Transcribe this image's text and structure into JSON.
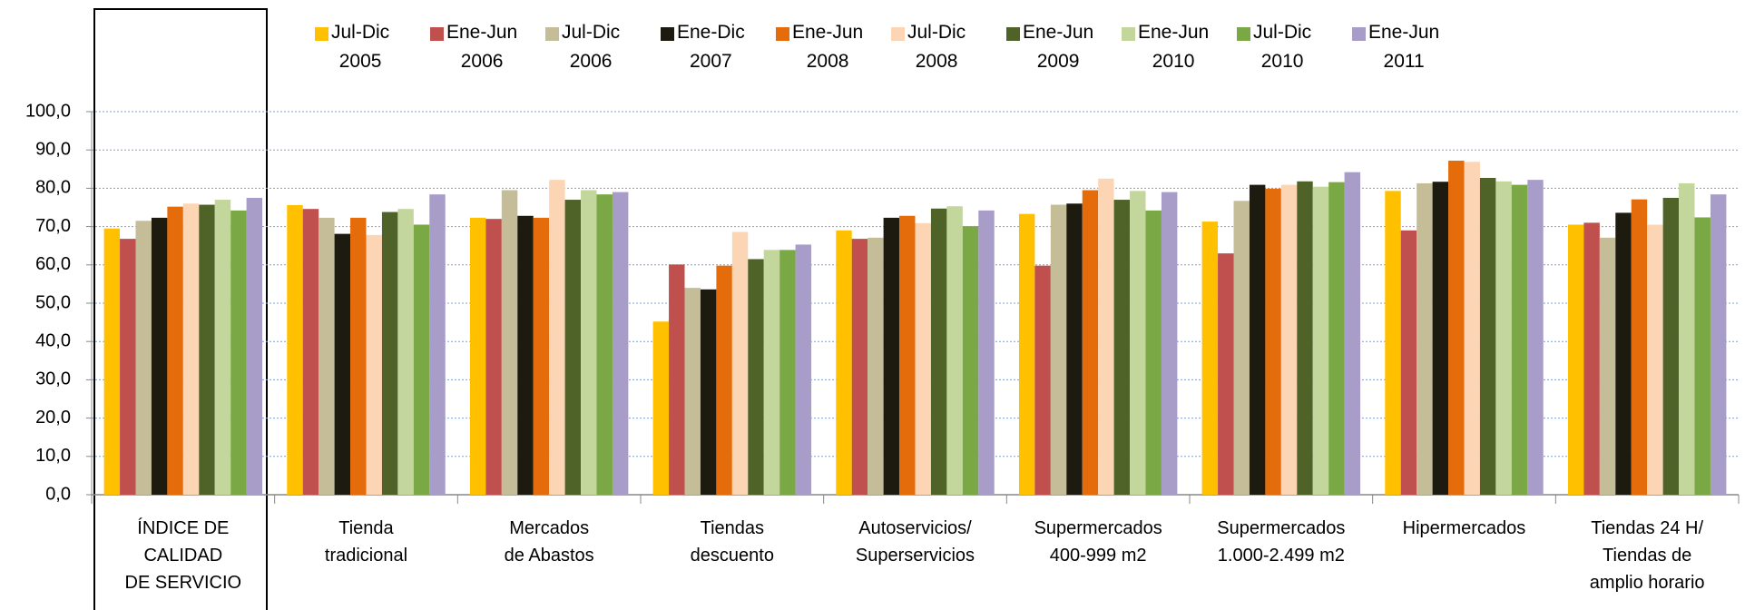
{
  "chart_data": {
    "type": "bar",
    "categories": [
      "ÍNDICE DE\nCALIDAD\nDE SERVICIO",
      "Tienda\ntradicional",
      "Mercados\nde Abastos",
      "Tiendas\ndescuento",
      "Autoservicios/\nSuperservicios",
      "Supermercados\n400-999 m2",
      "Supermercados\n1.000-2.499 m2",
      "Hipermercados",
      "Tiendas 24 H/\nTiendas de\namplio horario"
    ],
    "series": [
      {
        "name": "Jul-Dic\n2005",
        "color": "#ffc000",
        "values": [
          69.5,
          75.6,
          72.3,
          45.2,
          69.0,
          73.3,
          71.3,
          79.3,
          70.5
        ]
      },
      {
        "name": "Ene-Jun\n2006",
        "color": "#c0504d",
        "values": [
          66.8,
          74.6,
          72.0,
          60.1,
          66.8,
          59.8,
          63.0,
          69.0,
          71.0
        ]
      },
      {
        "name": "Jul-Dic\n2006",
        "color": "#c4bd97",
        "values": [
          71.5,
          72.3,
          79.5,
          54.0,
          67.1,
          75.7,
          76.7,
          81.3,
          67.1
        ]
      },
      {
        "name": "Ene-Dic\n2007",
        "color": "#1d1b10",
        "values": [
          72.3,
          68.1,
          72.8,
          53.6,
          72.3,
          76.0,
          80.9,
          81.7,
          73.6
        ]
      },
      {
        "name": "Ene-Jun\n2008",
        "color": "#e46c0a",
        "values": [
          75.2,
          72.3,
          72.3,
          59.8,
          72.8,
          79.5,
          79.9,
          87.2,
          77.1
        ]
      },
      {
        "name": "Jul-Dic\n2008",
        "color": "#fcd5b5",
        "values": [
          76.0,
          67.8,
          82.2,
          68.6,
          70.9,
          82.5,
          80.9,
          86.9,
          70.5
        ]
      },
      {
        "name": "Ene-Jun\n2009",
        "color": "#4f6228",
        "values": [
          75.7,
          73.8,
          77.0,
          61.5,
          74.7,
          77.0,
          81.8,
          82.7,
          77.5
        ]
      },
      {
        "name": "Ene-Jun\n2010",
        "color": "#c3d69b",
        "values": [
          77.0,
          74.6,
          79.5,
          63.9,
          75.3,
          79.3,
          80.4,
          81.8,
          81.3
        ]
      },
      {
        "name": "Jul-Dic\n2010",
        "color": "#7aa844",
        "values": [
          74.2,
          70.5,
          78.4,
          63.9,
          70.1,
          74.2,
          81.6,
          80.9,
          72.4
        ]
      },
      {
        "name": "Ene-Jun\n2011",
        "color": "#a89cc8",
        "values": [
          77.5,
          78.4,
          79.0,
          65.3,
          74.2,
          79.0,
          84.2,
          82.2,
          78.4
        ]
      }
    ],
    "ylim": [
      0,
      100
    ],
    "yticks": [
      {
        "value": 0,
        "label": "0,0"
      },
      {
        "value": 10,
        "label": "10,0"
      },
      {
        "value": 20,
        "label": "20,0"
      },
      {
        "value": 30,
        "label": "30,0"
      },
      {
        "value": 40,
        "label": "40,0"
      },
      {
        "value": 50,
        "label": "50,0"
      },
      {
        "value": 60,
        "label": "60,0"
      },
      {
        "value": 70,
        "label": "70,0"
      },
      {
        "value": 80,
        "label": "80,0"
      },
      {
        "value": 90,
        "label": "90,0"
      },
      {
        "value": 100,
        "label": "100,0"
      }
    ],
    "grid": true
  }
}
